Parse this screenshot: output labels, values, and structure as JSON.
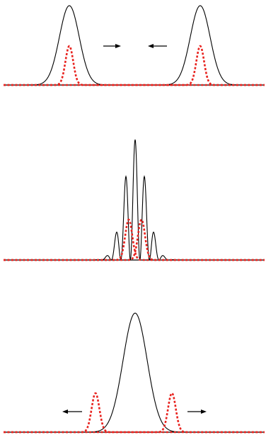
{
  "figure": {
    "background": "#ffffff",
    "colors": {
      "envelope": "#000000",
      "packet": "#e8231f",
      "baseline": "#000000"
    },
    "panels": [
      {
        "id": "before-collision",
        "envelopes": [
          {
            "form": "gaussian"
          },
          {
            "form": "gaussian"
          }
        ],
        "packets": [
          {
            "form": "gaussian"
          },
          {
            "form": "gaussian"
          }
        ],
        "arrows": [
          {
            "direction": "right"
          },
          {
            "direction": "left"
          }
        ]
      },
      {
        "id": "during-collision",
        "envelopes": [
          {
            "form": "interference-fringes"
          }
        ],
        "packets": [
          {
            "form": "gaussian"
          },
          {
            "form": "gaussian"
          }
        ],
        "arrows": []
      },
      {
        "id": "after-collision",
        "envelopes": [
          {
            "form": "gaussian"
          }
        ],
        "packets": [
          {
            "form": "gaussian"
          },
          {
            "form": "gaussian"
          }
        ],
        "arrows": [
          {
            "direction": "left"
          },
          {
            "direction": "right"
          }
        ]
      }
    ]
  }
}
